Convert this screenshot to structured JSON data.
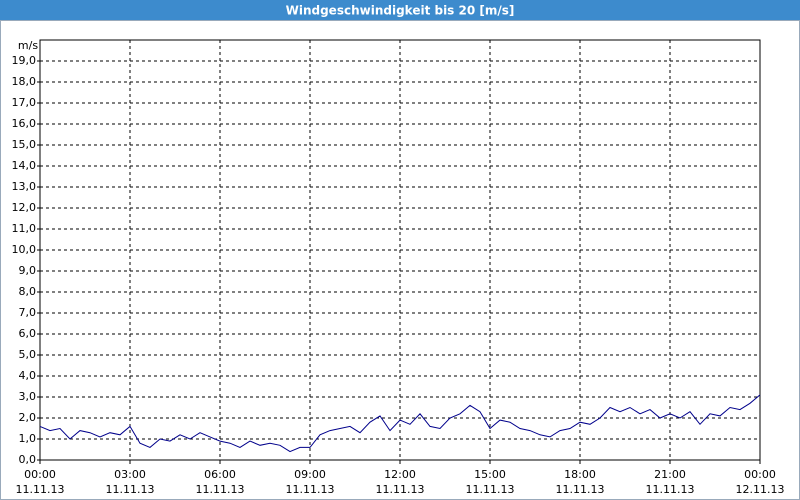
{
  "chart_data": {
    "type": "line",
    "title": "Windgeschwindigkeit bis 20 [m/s]",
    "y_label": "m/s",
    "x": [
      0,
      20,
      40,
      60,
      80,
      100,
      120,
      140,
      160,
      180,
      200,
      220,
      240,
      260,
      280,
      300,
      320,
      340,
      360,
      380,
      400,
      420,
      440,
      460,
      480,
      500,
      520,
      540,
      560,
      580,
      600,
      620,
      640,
      660,
      680,
      700,
      720,
      740,
      760,
      780,
      800,
      820,
      840,
      860,
      880,
      900,
      920,
      940,
      960,
      980,
      1000,
      1020,
      1040,
      1060,
      1080,
      1100,
      1120,
      1140,
      1160,
      1180,
      1200,
      1220,
      1240,
      1260,
      1280,
      1300,
      1320,
      1340,
      1360,
      1380,
      1400,
      1420,
      1440
    ],
    "series": [
      {
        "name": "Windgeschwindigkeit",
        "color": "#00008b",
        "values": [
          1.6,
          1.4,
          1.5,
          1.0,
          1.4,
          1.3,
          1.1,
          1.3,
          1.2,
          1.6,
          0.8,
          0.6,
          1.0,
          0.9,
          1.2,
          1.0,
          1.3,
          1.1,
          0.9,
          0.8,
          0.6,
          0.9,
          0.7,
          0.8,
          0.7,
          0.4,
          0.6,
          0.6,
          1.2,
          1.4,
          1.5,
          1.6,
          1.3,
          1.8,
          2.1,
          1.4,
          1.9,
          1.7,
          2.2,
          1.6,
          1.5,
          2.0,
          2.2,
          2.6,
          2.3,
          1.5,
          1.9,
          1.8,
          1.5,
          1.4,
          1.2,
          1.1,
          1.4,
          1.5,
          1.8,
          1.7,
          2.0,
          2.5,
          2.3,
          2.5,
          2.2,
          2.4,
          2.0,
          2.2,
          2.0,
          2.3,
          1.7,
          2.2,
          2.1,
          2.5,
          2.4,
          2.7,
          3.1
        ]
      }
    ],
    "xlim": [
      0,
      1440
    ],
    "xticks": [
      {
        "value": 0,
        "label": "00:00"
      },
      {
        "value": 180,
        "label": "03:00"
      },
      {
        "value": 360,
        "label": "06:00"
      },
      {
        "value": 540,
        "label": "09:00"
      },
      {
        "value": 720,
        "label": "12:00"
      },
      {
        "value": 900,
        "label": "15:00"
      },
      {
        "value": 1080,
        "label": "18:00"
      },
      {
        "value": 1260,
        "label": "21:00"
      },
      {
        "value": 1440,
        "label": "00:00"
      }
    ],
    "xtick_dates": [
      "11.11.13",
      "11.11.13",
      "11.11.13",
      "11.11.13",
      "11.11.13",
      "11.11.13",
      "11.11.13",
      "11.11.13",
      "12.11.13"
    ],
    "ylim": [
      0,
      20
    ],
    "yticks": [
      {
        "value": 0,
        "label": "0,0"
      },
      {
        "value": 1,
        "label": "1,0"
      },
      {
        "value": 2,
        "label": "2,0"
      },
      {
        "value": 3,
        "label": "3,0"
      },
      {
        "value": 4,
        "label": "4,0"
      },
      {
        "value": 5,
        "label": "5,0"
      },
      {
        "value": 6,
        "label": "6,0"
      },
      {
        "value": 7,
        "label": "7,0"
      },
      {
        "value": 8,
        "label": "8,0"
      },
      {
        "value": 9,
        "label": "9,0"
      },
      {
        "value": 10,
        "label": "10,0"
      },
      {
        "value": 11,
        "label": "11,0"
      },
      {
        "value": 12,
        "label": "12,0"
      },
      {
        "value": 13,
        "label": "13,0"
      },
      {
        "value": 14,
        "label": "14,0"
      },
      {
        "value": 15,
        "label": "15,0"
      },
      {
        "value": 16,
        "label": "16,0"
      },
      {
        "value": 17,
        "label": "17,0"
      },
      {
        "value": 18,
        "label": "18,0"
      },
      {
        "value": 19,
        "label": "19,0"
      }
    ],
    "grid": true
  }
}
